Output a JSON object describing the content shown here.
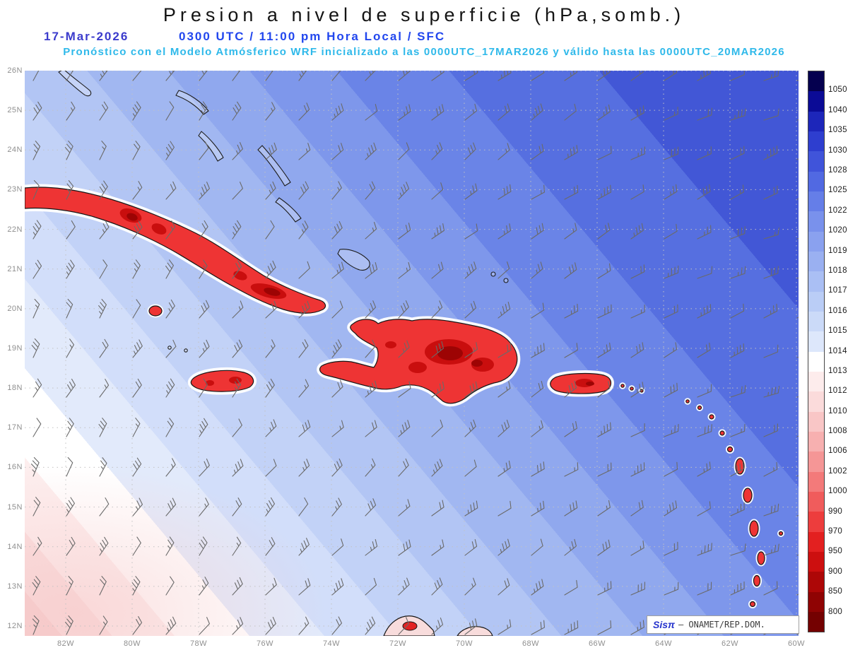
{
  "header": {
    "title": "Presion a nivel de superficie (hPa,somb.)",
    "date": "17-Mar-2026",
    "time": "0300 UTC / 11:00 pm Hora Local / SFC",
    "forecast": "Pronóstico con el Modelo Atmósferico WRF inicializado a las 0000UTC_17MAR2026 y válido hasta las 0000UTC_20MAR2026",
    "colors": {
      "title": "#141414",
      "date": "#3b3bcc",
      "time": "#2247ee",
      "forecast": "#2fb9ea"
    }
  },
  "axes": {
    "lat_labels": [
      "26N",
      "25N",
      "24N",
      "23N",
      "22N",
      "21N",
      "20N",
      "19N",
      "18N",
      "17N",
      "16N",
      "15N",
      "14N",
      "13N",
      "12N"
    ],
    "lon_labels": [
      "82W",
      "80W",
      "78W",
      "76W",
      "74W",
      "72W",
      "70W",
      "68W",
      "66W",
      "64W",
      "62W",
      "60W"
    ]
  },
  "colorbar": {
    "unit": "hPa",
    "labels": [
      "1050",
      "1040",
      "1035",
      "1030",
      "1028",
      "1025",
      "1022",
      "1020",
      "1019",
      "1018",
      "1017",
      "1016",
      "1015",
      "1014",
      "1013",
      "1012",
      "1010",
      "1008",
      "1006",
      "1002",
      "1000",
      "990",
      "970",
      "950",
      "900",
      "850",
      "800"
    ],
    "colors": [
      "#05004f",
      "#0b0b96",
      "#1d26ba",
      "#2e3ecf",
      "#4054da",
      "#5169e2",
      "#657ee8",
      "#7991ec",
      "#8aa1ef",
      "#9ab0f1",
      "#aabff4",
      "#bacdf6",
      "#cbdaf8",
      "#dde7fb",
      "#ffffff",
      "#fdecec",
      "#fbdbdb",
      "#f9c6c6",
      "#f7b0b0",
      "#f59696",
      "#f37a7a",
      "#f05c5c",
      "#ed3d3d",
      "#e32020",
      "#cd0f0f",
      "#ad0707",
      "#8f0303",
      "#740101"
    ]
  },
  "field": {
    "angle": 50,
    "bands": [
      {
        "color": "#f6cfcf",
        "to": 3
      },
      {
        "color": "#fadede",
        "to": 7
      },
      {
        "color": "#fdeeee",
        "to": 12
      },
      {
        "color": "#ffffff",
        "to": 18
      },
      {
        "color": "#e2eafb",
        "to": 24
      },
      {
        "color": "#d2defa",
        "to": 30
      },
      {
        "color": "#c2d2f7",
        "to": 36.5
      },
      {
        "color": "#b2c5f4",
        "to": 43
      },
      {
        "color": "#a1b7f1",
        "to": 49.5
      },
      {
        "color": "#90a8ee",
        "to": 56
      },
      {
        "color": "#7e97eb",
        "to": 63
      },
      {
        "color": "#6a84e7",
        "to": 72
      },
      {
        "color": "#566fe0",
        "to": 84
      },
      {
        "color": "#4257d6",
        "to": 100
      }
    ]
  },
  "wind_barbs": {
    "color": "#6a6a6a",
    "col_step": 47,
    "row_step": 56,
    "base_angle": 28,
    "angle_span": 42
  },
  "branding": {
    "logo": "Sisπ",
    "credit": "– ONAMET/REP.DOM.",
    "colors": {
      "logo": "#2633cc",
      "credit": "#3c3c3c"
    }
  }
}
